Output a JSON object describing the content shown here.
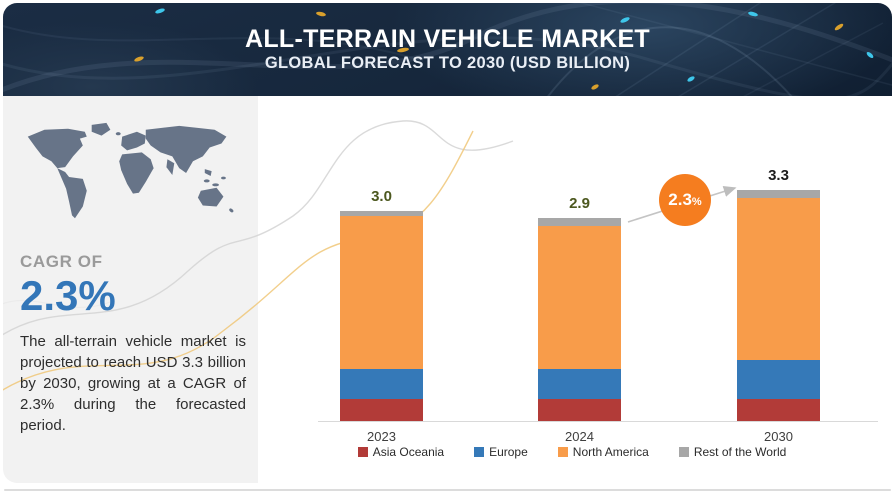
{
  "banner": {
    "title": "ALL-TERRAIN VEHICLE MARKET",
    "subtitle": "GLOBAL FORECAST TO 2030 (USD BILLION)"
  },
  "sidebar": {
    "cagr_label": "CAGR OF",
    "cagr_value": "2.3%",
    "description": "The all-terrain vehicle market is projected to reach USD 3.3 billion by 2030, growing at a CAGR of 2.3% during the forecasted period."
  },
  "growth_badge": {
    "value": "2.3",
    "unit": "%"
  },
  "colors": {
    "accent_orange": "#f57d1f",
    "cagr_blue": "#3376b8",
    "banner_navy": "#16273c",
    "panel_gray": "#f2f2f2",
    "axis_gray": "#d9d9d9"
  },
  "chart_data": {
    "type": "bar",
    "stacked": true,
    "title": "",
    "xlabel": "",
    "ylabel": "",
    "ylim": [
      0,
      3.5
    ],
    "gridlines": false,
    "legend_position": "bottom",
    "categories": [
      "2023",
      "2024",
      "2030"
    ],
    "series": [
      {
        "name": "Asia Oceania",
        "color": "#b23b38",
        "values": [
          0.31,
          0.31,
          0.32
        ]
      },
      {
        "name": "Europe",
        "color": "#3579b8",
        "values": [
          0.44,
          0.44,
          0.55
        ]
      },
      {
        "name": "North America",
        "color": "#f89c4a",
        "values": [
          2.18,
          2.04,
          2.31
        ]
      },
      {
        "name": "Rest of the World",
        "color": "#a7a7a7",
        "values": [
          0.07,
          0.11,
          0.12
        ]
      }
    ],
    "totals": [
      3.0,
      2.9,
      3.3
    ],
    "total_labels": [
      "3.0",
      "2.9",
      "3.3"
    ],
    "total_label_colors": [
      "#4c581f",
      "#4c581f",
      "#1c1c1c"
    ],
    "cagr_annotation": "2.3%"
  }
}
